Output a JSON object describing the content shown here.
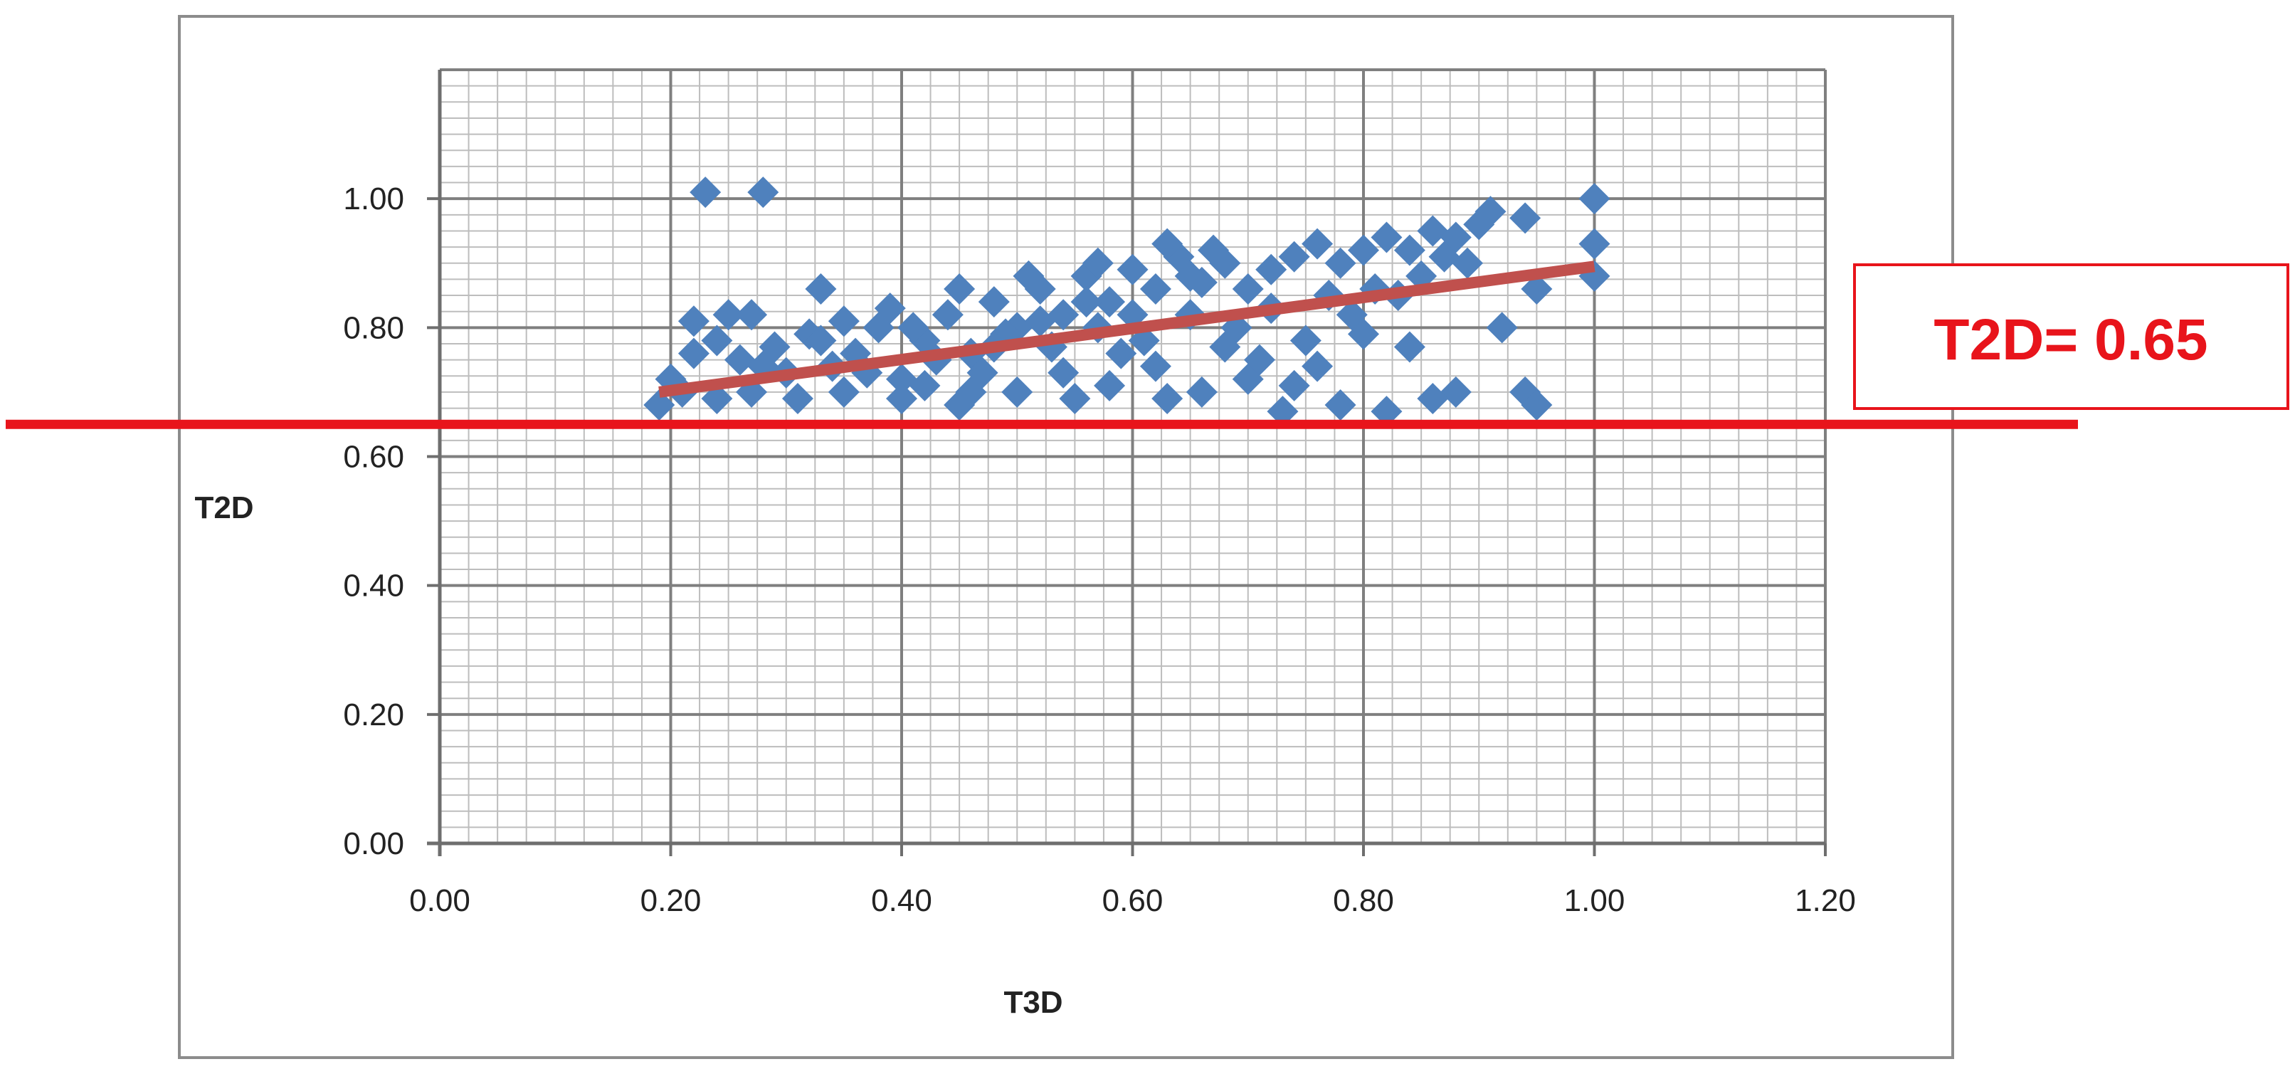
{
  "chart_data": {
    "type": "scatter",
    "title": "",
    "xlabel": "T3D",
    "ylabel": "T2D",
    "xlim": [
      0,
      1.2
    ],
    "ylim": [
      0,
      1.2
    ],
    "x_ticks": [
      "0.00",
      "0.20",
      "0.40",
      "0.60",
      "0.80",
      "1.00",
      "1.20"
    ],
    "y_ticks": [
      "0.00",
      "0.20",
      "0.40",
      "0.60",
      "0.80",
      "1.00"
    ],
    "grid": true,
    "marker_color": "#4f81bd",
    "marker": "diamond",
    "trendline": {
      "x": [
        0.19,
        1.0
      ],
      "y": [
        0.7,
        0.895
      ],
      "color": "#c0504d"
    },
    "threshold": {
      "y": 0.65,
      "label": "T2D= 0.65",
      "color": "#e8141b"
    },
    "points": [
      [
        0.23,
        1.01
      ],
      [
        0.28,
        1.01
      ],
      [
        0.33,
        0.86
      ],
      [
        0.22,
        0.81
      ],
      [
        0.25,
        0.82
      ],
      [
        0.27,
        0.82
      ],
      [
        0.19,
        0.68
      ],
      [
        0.2,
        0.72
      ],
      [
        0.21,
        0.7
      ],
      [
        0.22,
        0.76
      ],
      [
        0.24,
        0.78
      ],
      [
        0.26,
        0.75
      ],
      [
        0.29,
        0.77
      ],
      [
        0.3,
        0.73
      ],
      [
        0.32,
        0.79
      ],
      [
        0.34,
        0.74
      ],
      [
        0.36,
        0.76
      ],
      [
        0.38,
        0.8
      ],
      [
        0.4,
        0.72
      ],
      [
        0.42,
        0.78
      ],
      [
        0.44,
        0.82
      ],
      [
        0.46,
        0.76
      ],
      [
        0.48,
        0.84
      ],
      [
        0.5,
        0.8
      ],
      [
        0.52,
        0.86
      ],
      [
        0.54,
        0.82
      ],
      [
        0.56,
        0.88
      ],
      [
        0.58,
        0.84
      ],
      [
        0.6,
        0.89
      ],
      [
        0.62,
        0.86
      ],
      [
        0.64,
        0.91
      ],
      [
        0.66,
        0.87
      ],
      [
        0.68,
        0.9
      ],
      [
        0.7,
        0.86
      ],
      [
        0.72,
        0.89
      ],
      [
        0.74,
        0.91
      ],
      [
        0.76,
        0.93
      ],
      [
        0.78,
        0.9
      ],
      [
        0.8,
        0.92
      ],
      [
        0.82,
        0.94
      ],
      [
        0.84,
        0.92
      ],
      [
        0.86,
        0.95
      ],
      [
        0.88,
        0.94
      ],
      [
        0.9,
        0.96
      ],
      [
        0.91,
        0.98
      ],
      [
        0.94,
        0.97
      ],
      [
        1.0,
        1.0
      ],
      [
        1.0,
        0.93
      ],
      [
        1.0,
        0.88
      ],
      [
        0.95,
        0.86
      ],
      [
        0.92,
        0.8
      ],
      [
        0.94,
        0.7
      ],
      [
        0.95,
        0.68
      ],
      [
        0.88,
        0.7
      ],
      [
        0.86,
        0.69
      ],
      [
        0.82,
        0.67
      ],
      [
        0.78,
        0.68
      ],
      [
        0.84,
        0.77
      ],
      [
        0.8,
        0.79
      ],
      [
        0.76,
        0.74
      ],
      [
        0.73,
        0.67
      ],
      [
        0.7,
        0.72
      ],
      [
        0.66,
        0.7
      ],
      [
        0.62,
        0.74
      ],
      [
        0.58,
        0.71
      ],
      [
        0.55,
        0.69
      ],
      [
        0.5,
        0.7
      ],
      [
        0.45,
        0.68
      ],
      [
        0.4,
        0.69
      ],
      [
        0.35,
        0.7
      ],
      [
        0.31,
        0.69
      ],
      [
        0.27,
        0.7
      ],
      [
        0.24,
        0.69
      ],
      [
        0.37,
        0.73
      ],
      [
        0.43,
        0.75
      ],
      [
        0.47,
        0.73
      ],
      [
        0.53,
        0.77
      ],
      [
        0.57,
        0.8
      ],
      [
        0.61,
        0.78
      ],
      [
        0.65,
        0.82
      ],
      [
        0.69,
        0.8
      ],
      [
        0.72,
        0.83
      ],
      [
        0.77,
        0.85
      ],
      [
        0.81,
        0.86
      ],
      [
        0.85,
        0.88
      ],
      [
        0.89,
        0.9
      ],
      [
        0.33,
        0.78
      ],
      [
        0.39,
        0.83
      ],
      [
        0.45,
        0.86
      ],
      [
        0.51,
        0.88
      ],
      [
        0.57,
        0.9
      ],
      [
        0.63,
        0.93
      ],
      [
        0.67,
        0.92
      ],
      [
        0.71,
        0.75
      ],
      [
        0.75,
        0.78
      ],
      [
        0.79,
        0.82
      ],
      [
        0.83,
        0.85
      ],
      [
        0.87,
        0.91
      ],
      [
        0.41,
        0.8
      ],
      [
        0.49,
        0.79
      ],
      [
        0.59,
        0.76
      ],
      [
        0.68,
        0.77
      ],
      [
        0.74,
        0.71
      ],
      [
        0.28,
        0.74
      ],
      [
        0.35,
        0.81
      ],
      [
        0.46,
        0.7
      ],
      [
        0.54,
        0.73
      ],
      [
        0.63,
        0.69
      ],
      [
        0.56,
        0.84
      ],
      [
        0.6,
        0.82
      ],
      [
        0.65,
        0.88
      ],
      [
        0.52,
        0.81
      ],
      [
        0.48,
        0.77
      ],
      [
        0.42,
        0.71
      ]
    ]
  }
}
